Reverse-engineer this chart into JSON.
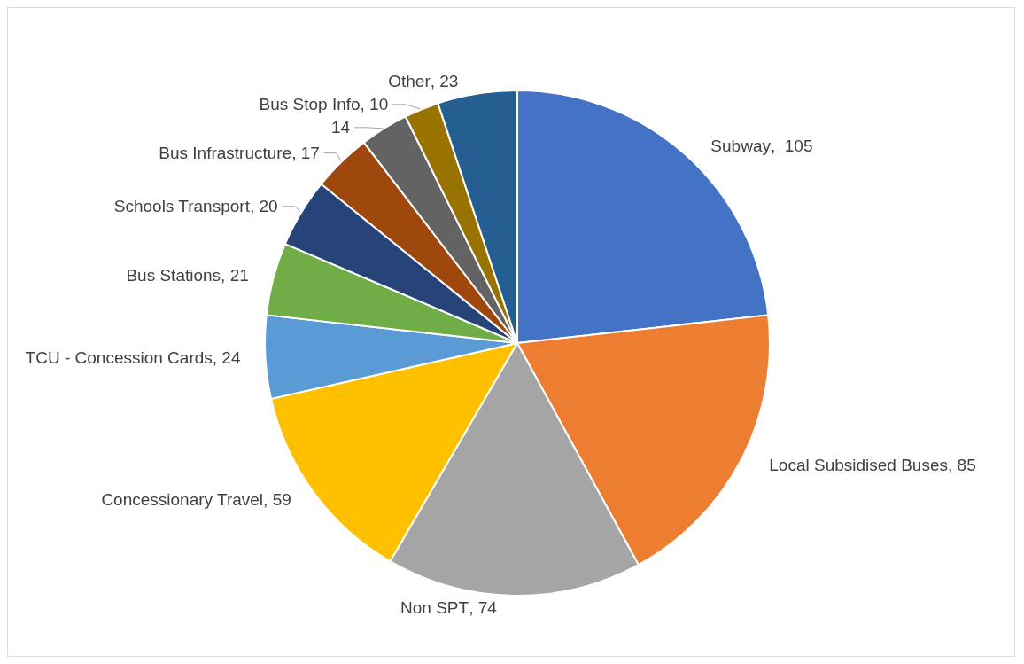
{
  "chart_data": {
    "type": "pie",
    "categories": [
      "Subway",
      "Local Subsidised Buses",
      "Non SPT",
      "Concessionary Travel",
      "TCU - Concession Cards",
      "Bus Stations",
      "Schools Transport",
      "Bus Infrastructure",
      null,
      "Bus Stop Info",
      "Other"
    ],
    "values": [
      105,
      85,
      74,
      59,
      24,
      21,
      20,
      17,
      14,
      10,
      23
    ],
    "value_labels": [
      ",  105",
      ", 85",
      ", 74",
      ", 59",
      ", 24",
      ", 21",
      ", 20",
      ", 17",
      "14",
      ", 10",
      ", 23"
    ],
    "colors": [
      "#4472c4",
      "#ed7d31",
      "#a5a5a5",
      "#ffc000",
      "#5b9bd5",
      "#70ad47",
      "#264478",
      "#9e480e",
      "#636363",
      "#997300",
      "#255e91"
    ],
    "legend": false
  }
}
